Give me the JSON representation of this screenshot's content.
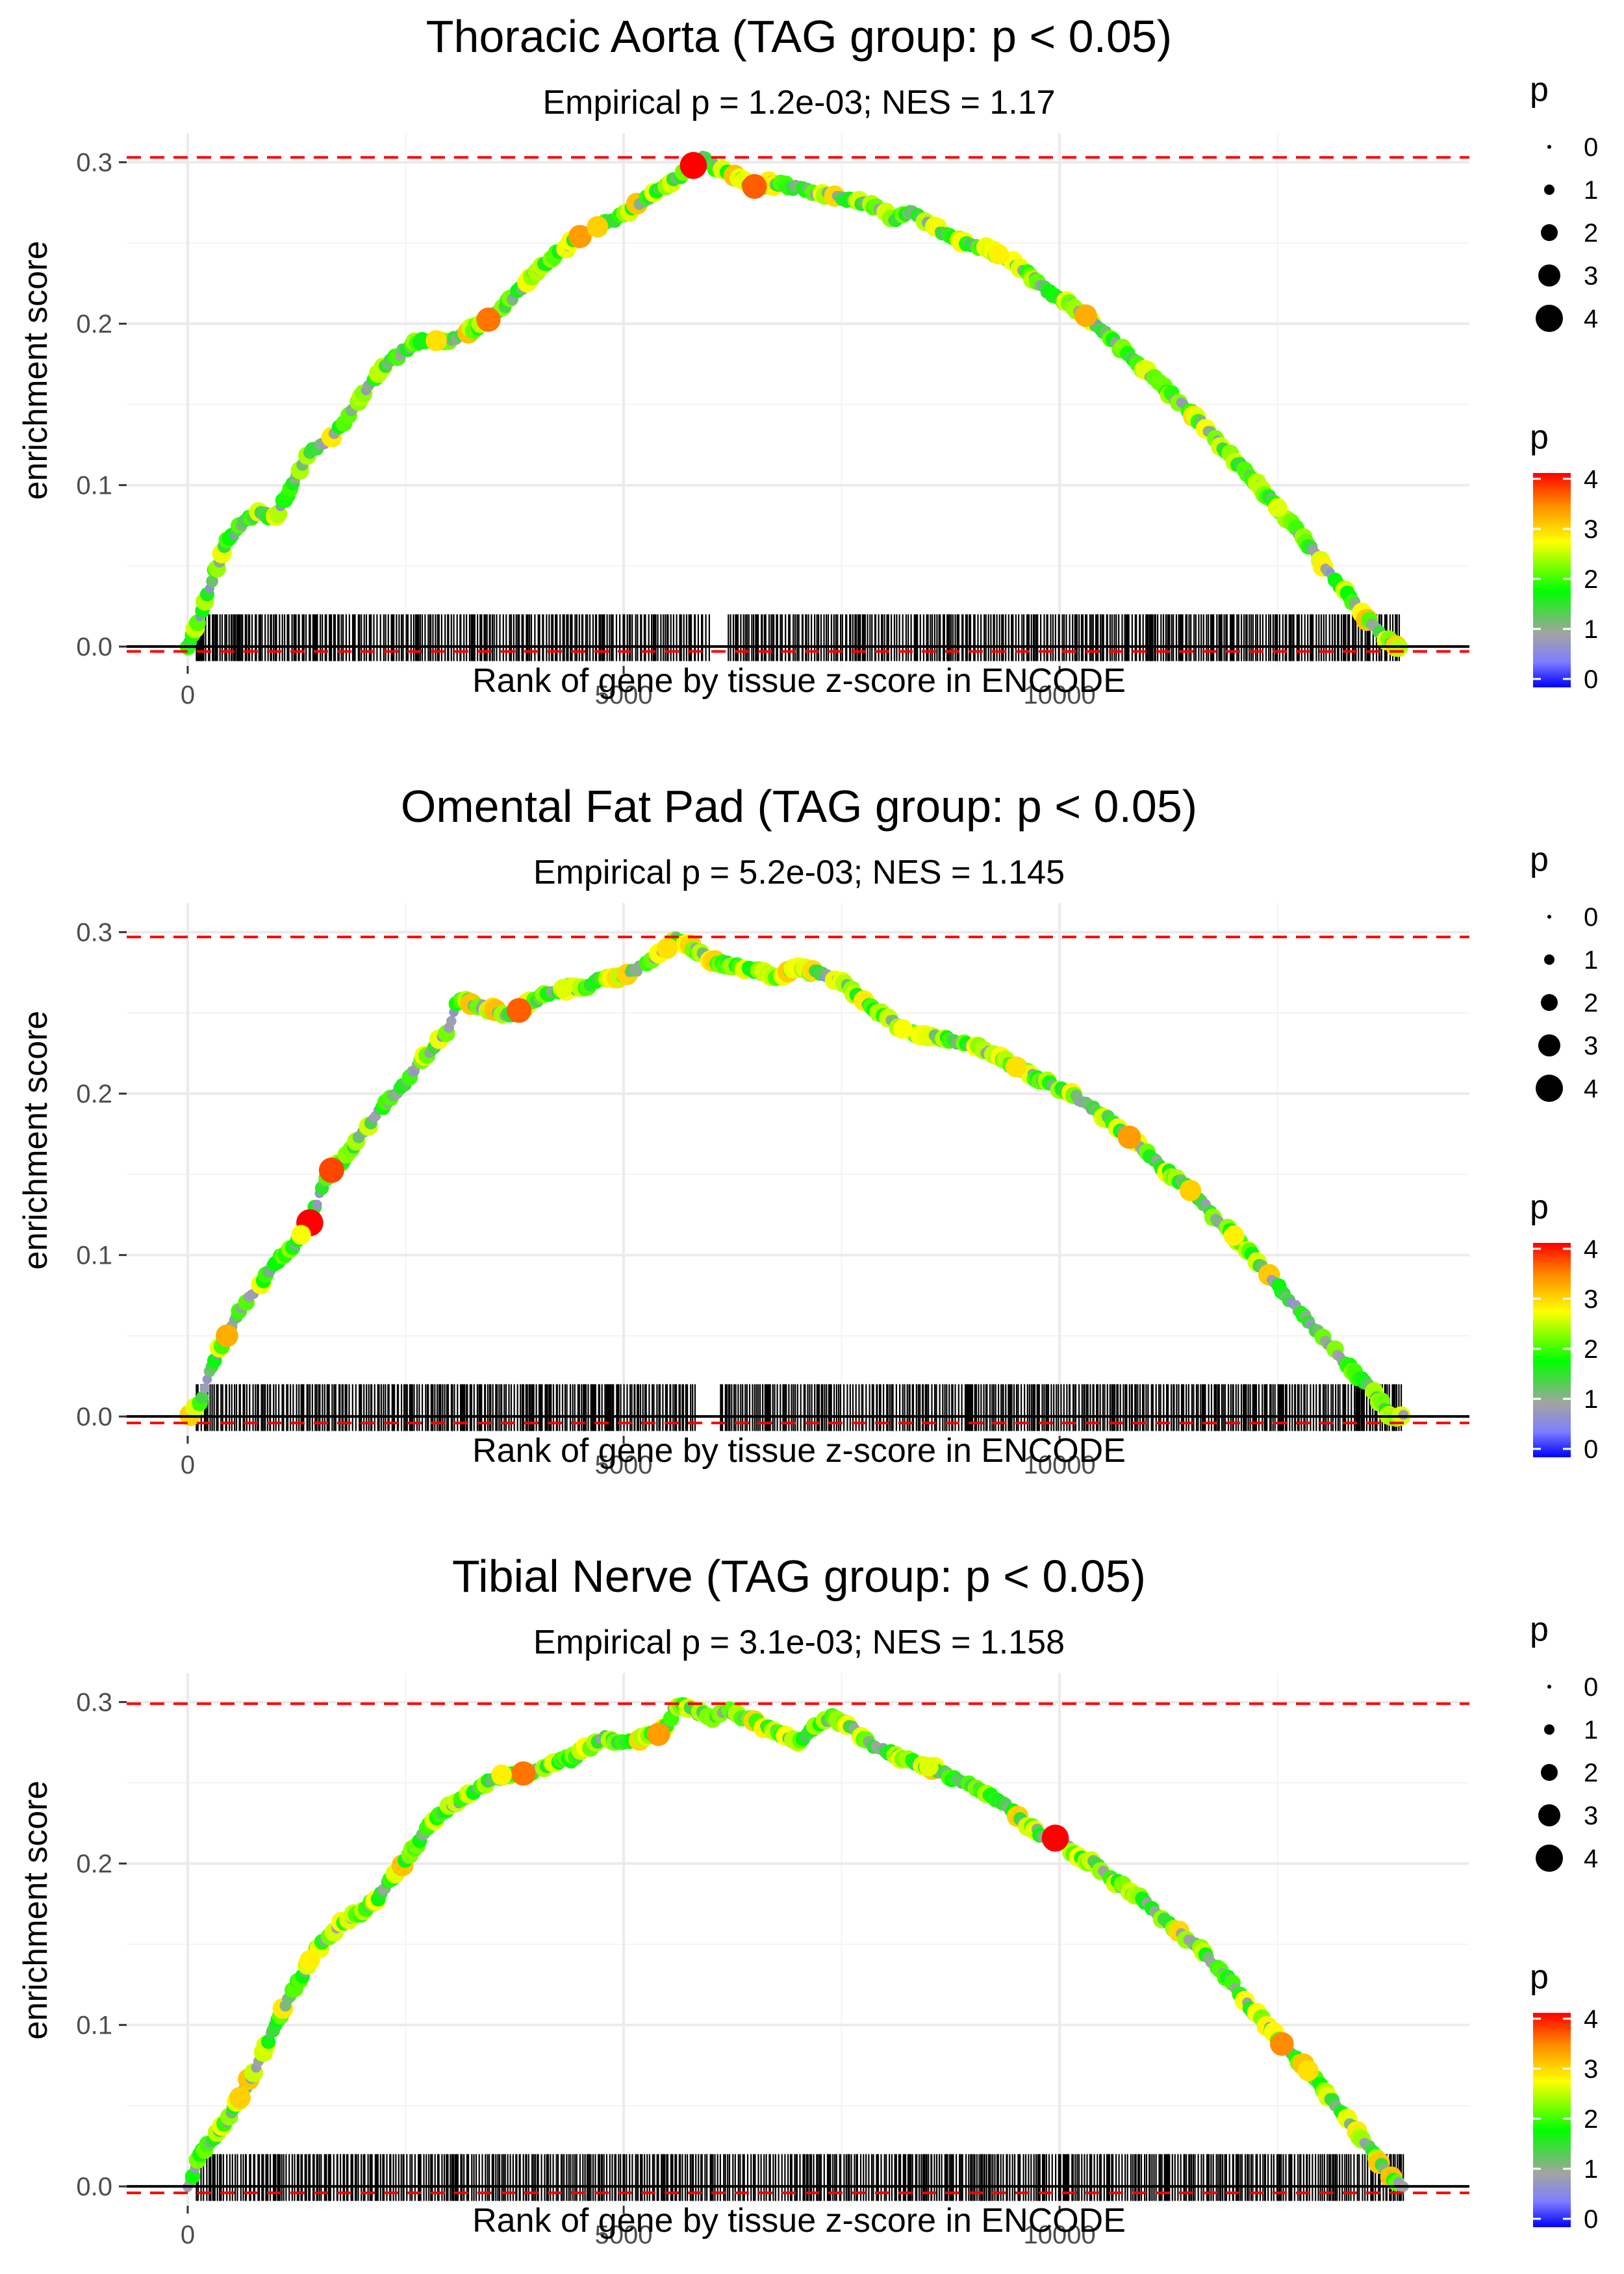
{
  "chart_data": [
    {
      "type": "line",
      "title": "Thoracic Aorta (TAG group: p < 0.05)",
      "subtitle": "Empirical p = 1.2e-03; NES = 1.17",
      "xlabel": "Rank of gene by tissue z-score in ENCODE",
      "ylabel": "enrichment score",
      "xlim": [
        -700,
        14700
      ],
      "ylim": [
        -0.012,
        0.318
      ],
      "xticks": [
        0,
        5000,
        10000
      ],
      "xtick_labels": [
        "0",
        "5000",
        "10000"
      ],
      "yticks": [
        0.0,
        0.1,
        0.2,
        0.3
      ],
      "ytick_labels": [
        "0.0",
        "0.1",
        "0.2",
        "0.3"
      ],
      "max_es": 0.303,
      "min_es": -0.003,
      "rug_extent": [
        100,
        13900
      ],
      "rug_gaps": [
        [
          6000,
          6200
        ]
      ],
      "curve": {
        "x": [
          0,
          150,
          300,
          450,
          600,
          800,
          1000,
          1200,
          1400,
          1600,
          1800,
          2000,
          2200,
          2400,
          2600,
          2800,
          3000,
          3200,
          3400,
          3600,
          3800,
          4000,
          4200,
          4400,
          4600,
          4800,
          5000,
          5200,
          5400,
          5600,
          5800,
          5900,
          6100,
          6300,
          6500,
          6700,
          6900,
          7100,
          7300,
          7500,
          7700,
          7900,
          8100,
          8300,
          8500,
          8700,
          8900,
          9100,
          9300,
          9500,
          9700,
          9900,
          10100,
          10300,
          10500,
          10700,
          10900,
          11100,
          11300,
          11500,
          11700,
          11900,
          12100,
          12300,
          12500,
          12700,
          12900,
          13100,
          13300,
          13500,
          13700,
          13900
        ],
        "y": [
          0.0,
          0.02,
          0.045,
          0.065,
          0.075,
          0.083,
          0.08,
          0.1,
          0.12,
          0.128,
          0.14,
          0.155,
          0.17,
          0.18,
          0.188,
          0.19,
          0.188,
          0.195,
          0.2,
          0.21,
          0.22,
          0.232,
          0.242,
          0.25,
          0.258,
          0.262,
          0.268,
          0.275,
          0.282,
          0.29,
          0.298,
          0.303,
          0.295,
          0.29,
          0.285,
          0.287,
          0.285,
          0.283,
          0.28,
          0.278,
          0.275,
          0.272,
          0.265,
          0.27,
          0.262,
          0.255,
          0.25,
          0.248,
          0.243,
          0.237,
          0.228,
          0.218,
          0.213,
          0.205,
          0.195,
          0.185,
          0.175,
          0.165,
          0.155,
          0.145,
          0.134,
          0.122,
          0.11,
          0.098,
          0.086,
          0.073,
          0.06,
          0.045,
          0.032,
          0.018,
          0.006,
          0.0
        ]
      },
      "highlights": [
        {
          "x": 5800,
          "p": 4.0
        },
        {
          "x": 6500,
          "p": 3.6
        },
        {
          "x": 3450,
          "p": 3.5
        },
        {
          "x": 4500,
          "p": 3.3
        },
        {
          "x": 4700,
          "p": 3.0
        },
        {
          "x": 2850,
          "p": 2.9
        },
        {
          "x": 10300,
          "p": 3.2
        },
        {
          "x": 9300,
          "p": 2.8
        },
        {
          "x": 12500,
          "p": 2.6
        }
      ]
    },
    {
      "type": "line",
      "title": "Omental Fat Pad (TAG group: p < 0.05)",
      "subtitle": "Empirical p = 5.2e-03; NES = 1.145",
      "xlabel": "Rank of gene by tissue z-score in ENCODE",
      "ylabel": "enrichment score",
      "xlim": [
        -700,
        14700
      ],
      "ylim": [
        -0.012,
        0.318
      ],
      "xticks": [
        0,
        5000,
        10000
      ],
      "xtick_labels": [
        "0",
        "5000",
        "10000"
      ],
      "yticks": [
        0.0,
        0.1,
        0.2,
        0.3
      ],
      "ytick_labels": [
        "0.0",
        "0.1",
        "0.2",
        "0.3"
      ],
      "max_es": 0.297,
      "min_es": -0.004,
      "rug_extent": [
        100,
        13950
      ],
      "rug_gaps": [
        [
          5850,
          6100
        ]
      ],
      "curve": {
        "x": [
          0,
          150,
          300,
          450,
          600,
          800,
          1000,
          1200,
          1400,
          1600,
          1800,
          2000,
          2200,
          2400,
          2600,
          2800,
          3000,
          3100,
          3300,
          3500,
          3700,
          3900,
          4100,
          4300,
          4500,
          4700,
          4900,
          5100,
          5300,
          5500,
          5600,
          5800,
          6000,
          6200,
          6400,
          6600,
          6800,
          7000,
          7200,
          7400,
          7600,
          7800,
          8000,
          8200,
          8400,
          8600,
          8800,
          9000,
          9200,
          9400,
          9600,
          9800,
          10000,
          10200,
          10400,
          10600,
          10800,
          11000,
          11200,
          11400,
          11600,
          11800,
          12000,
          12200,
          12400,
          12600,
          12800,
          13000,
          13200,
          13400,
          13600,
          13800,
          13950
        ],
        "y": [
          0.0,
          0.01,
          0.035,
          0.05,
          0.065,
          0.08,
          0.095,
          0.105,
          0.12,
          0.15,
          0.16,
          0.175,
          0.19,
          0.2,
          0.215,
          0.228,
          0.24,
          0.26,
          0.255,
          0.252,
          0.248,
          0.255,
          0.262,
          0.265,
          0.265,
          0.27,
          0.272,
          0.275,
          0.283,
          0.29,
          0.297,
          0.29,
          0.282,
          0.28,
          0.278,
          0.275,
          0.272,
          0.278,
          0.275,
          0.272,
          0.265,
          0.255,
          0.248,
          0.24,
          0.236,
          0.235,
          0.232,
          0.23,
          0.225,
          0.22,
          0.213,
          0.208,
          0.203,
          0.197,
          0.19,
          0.183,
          0.173,
          0.163,
          0.153,
          0.145,
          0.135,
          0.122,
          0.112,
          0.1,
          0.087,
          0.075,
          0.063,
          0.05,
          0.038,
          0.026,
          0.015,
          0.0,
          0.0
        ]
      },
      "highlights": [
        {
          "x": 1400,
          "p": 4.0
        },
        {
          "x": 1650,
          "p": 3.7
        },
        {
          "x": 3800,
          "p": 3.6
        },
        {
          "x": 450,
          "p": 3.2
        },
        {
          "x": 1300,
          "p": 2.7
        },
        {
          "x": 5500,
          "p": 2.9
        },
        {
          "x": 4300,
          "p": 2.6
        },
        {
          "x": 10800,
          "p": 3.3
        },
        {
          "x": 9500,
          "p": 2.9
        },
        {
          "x": 11500,
          "p": 3.0
        },
        {
          "x": 12000,
          "p": 2.8
        },
        {
          "x": 8200,
          "p": 2.7
        }
      ]
    },
    {
      "type": "line",
      "title": "Tibial Nerve (TAG group: p < 0.05)",
      "subtitle": "Empirical p = 3.1e-03; NES = 1.158",
      "xlabel": "Rank of gene by tissue z-score in ENCODE",
      "ylabel": "enrichment score",
      "xlim": [
        -700,
        14700
      ],
      "ylim": [
        -0.012,
        0.318
      ],
      "xticks": [
        0,
        5000,
        10000
      ],
      "xtick_labels": [
        "0",
        "5000",
        "10000"
      ],
      "yticks": [
        0.0,
        0.1,
        0.2,
        0.3
      ],
      "ytick_labels": [
        "0.0",
        "0.1",
        "0.2",
        "0.3"
      ],
      "max_es": 0.299,
      "min_es": -0.004,
      "rug_extent": [
        100,
        13950
      ],
      "rug_gaps": [],
      "curve": {
        "x": [
          0,
          150,
          300,
          450,
          600,
          800,
          1000,
          1200,
          1400,
          1600,
          1800,
          2000,
          2200,
          2400,
          2600,
          2800,
          3000,
          3200,
          3400,
          3600,
          3800,
          4000,
          4200,
          4400,
          4600,
          4800,
          5000,
          5200,
          5400,
          5500,
          5600,
          5800,
          6000,
          6200,
          6400,
          6600,
          6800,
          7000,
          7200,
          7400,
          7600,
          7800,
          8000,
          8200,
          8400,
          8600,
          8800,
          9000,
          9200,
          9400,
          9600,
          9800,
          10000,
          10200,
          10400,
          10600,
          10800,
          11000,
          11200,
          11400,
          11600,
          11800,
          12000,
          12200,
          12400,
          12600,
          12800,
          13000,
          13200,
          13400,
          13600,
          13800,
          13950
        ],
        "y": [
          0.0,
          0.02,
          0.03,
          0.04,
          0.055,
          0.075,
          0.1,
          0.12,
          0.14,
          0.155,
          0.165,
          0.17,
          0.18,
          0.195,
          0.21,
          0.225,
          0.235,
          0.242,
          0.25,
          0.255,
          0.255,
          0.258,
          0.262,
          0.265,
          0.272,
          0.278,
          0.275,
          0.278,
          0.28,
          0.285,
          0.299,
          0.295,
          0.29,
          0.295,
          0.29,
          0.285,
          0.28,
          0.275,
          0.285,
          0.29,
          0.285,
          0.275,
          0.27,
          0.265,
          0.262,
          0.258,
          0.252,
          0.248,
          0.242,
          0.235,
          0.225,
          0.218,
          0.215,
          0.205,
          0.2,
          0.19,
          0.183,
          0.175,
          0.165,
          0.155,
          0.148,
          0.135,
          0.125,
          0.11,
          0.098,
          0.085,
          0.075,
          0.062,
          0.048,
          0.035,
          0.02,
          0.005,
          0.0
        ]
      },
      "highlights": [
        {
          "x": 9950,
          "p": 4.0
        },
        {
          "x": 3850,
          "p": 3.5
        },
        {
          "x": 5400,
          "p": 3.3
        },
        {
          "x": 12550,
          "p": 3.4
        },
        {
          "x": 600,
          "p": 3.0
        },
        {
          "x": 1400,
          "p": 2.8
        },
        {
          "x": 12850,
          "p": 2.9
        },
        {
          "x": 3600,
          "p": 2.8
        },
        {
          "x": 8500,
          "p": 2.6
        }
      ]
    }
  ],
  "legend": {
    "size_title": "p",
    "size_labels": [
      "0",
      "1",
      "2",
      "3",
      "4"
    ],
    "color_title": "p",
    "color_labels": [
      "0",
      "1",
      "2",
      "3",
      "4"
    ],
    "color_stops": [
      "#0000ff",
      "#7f7fff",
      "#a3a3a3",
      "#00ff00",
      "#ffff00",
      "#ff8c00",
      "#ff0000"
    ],
    "accent_colors": {
      "reference_line": "#ff0000",
      "baseline": "#000000",
      "grid": "#ebebeb",
      "axis_text": "#4d4d4d"
    }
  }
}
